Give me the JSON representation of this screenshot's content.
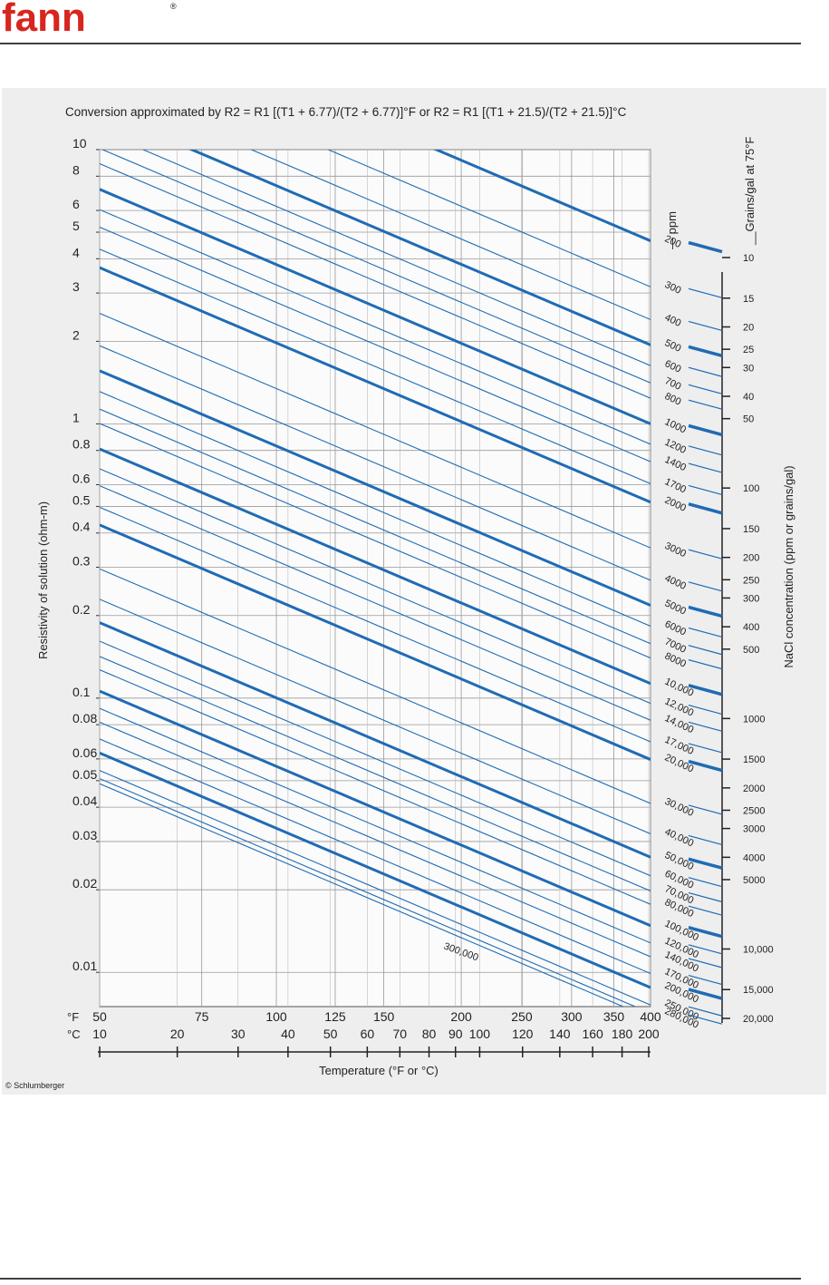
{
  "header": {
    "logo": "fann",
    "mark": "®"
  },
  "chart_data": {
    "type": "line",
    "title": "Conversion approximated by R2 = R1 [(T1 + 6.77)/(T2 + 6.77)]°F or R2 = R1 [(T1 + 21.5)/(T2 + 21.5)]°C",
    "y_label": "Resistivity of solution (ohm-m)",
    "x_label": "Temperature (°F or °C)",
    "right_label": "NaCl concentration (ppm or grains/gal)",
    "ppm_label": "— ppm",
    "grains_label": "__Grains/gal at 75°F",
    "f_unit": "°F",
    "c_unit": "°C",
    "credit": "© Schlumberger",
    "color": "#1f6bb5",
    "xscale_offset": 6.77,
    "xlim": [
      50,
      400
    ],
    "xticks": [
      50,
      75,
      100,
      125,
      150,
      200,
      250,
      300,
      350,
      400
    ],
    "c_scale_offset": 21.5,
    "c_xlim": [
      10,
      200
    ],
    "c_xticks": [
      10,
      20,
      30,
      40,
      50,
      60,
      70,
      80,
      90,
      100,
      120,
      140,
      160,
      180,
      200
    ],
    "yscale": "log",
    "ylim": [
      0.0075,
      10
    ],
    "yticks": [
      10,
      8,
      6,
      5,
      4,
      3,
      2,
      1,
      0.8,
      0.6,
      0.5,
      0.4,
      0.3,
      0.2,
      0.1,
      0.08,
      0.06,
      0.05,
      0.04,
      0.03,
      0.02,
      0.01
    ],
    "grains_ticks": [
      10,
      15,
      20,
      25,
      30,
      40,
      50,
      100,
      150,
      200,
      250,
      300,
      400,
      500,
      1000,
      1500,
      2000,
      2500,
      3000,
      4000,
      5000,
      {
        "value": 10000,
        "label": "10,000"
      },
      {
        "value": 15000,
        "label": "15,000"
      },
      {
        "value": 20000,
        "label": "20,000"
      }
    ],
    "series": [
      {
        "name": "200",
        "values": [
          4.65
        ],
        "bold": true
      },
      {
        "name": "300",
        "values": [
          3.16
        ],
        "bold": false
      },
      {
        "name": "400",
        "values": [
          2.4
        ],
        "bold": false
      },
      {
        "name": "500",
        "values": [
          1.94
        ],
        "bold": true
      },
      {
        "name": "600",
        "values": [
          1.63
        ],
        "bold": false
      },
      {
        "name": "700",
        "values": [
          1.41
        ],
        "bold": false
      },
      {
        "name": "800",
        "values": [
          1.24
        ],
        "bold": false
      },
      {
        "name": "1000",
        "values": [
          1.0
        ],
        "bold": true
      },
      {
        "name": "1200",
        "values": [
          0.843
        ],
        "bold": false
      },
      {
        "name": "1400",
        "values": [
          0.728
        ],
        "bold": false
      },
      {
        "name": "1700",
        "values": [
          0.605
        ],
        "bold": false
      },
      {
        "name": "2000",
        "values": [
          0.518
        ],
        "bold": true
      },
      {
        "name": "3000",
        "values": [
          0.353
        ],
        "bold": false
      },
      {
        "name": "4000",
        "values": [
          0.269
        ],
        "bold": false
      },
      {
        "name": "5000",
        "values": [
          0.218
        ],
        "bold": true
      },
      {
        "name": "6000",
        "values": [
          0.183
        ],
        "bold": false
      },
      {
        "name": "7000",
        "values": [
          0.158
        ],
        "bold": false
      },
      {
        "name": "8000",
        "values": [
          0.14
        ],
        "bold": false
      },
      {
        "name": "10,000",
        "values": [
          0.113
        ],
        "bold": true
      },
      {
        "name": "12,000",
        "values": [
          0.0957
        ],
        "bold": false
      },
      {
        "name": "14,000",
        "values": [
          0.083
        ],
        "bold": false
      },
      {
        "name": "17,000",
        "values": [
          0.0693
        ],
        "bold": false
      },
      {
        "name": "20,000",
        "values": [
          0.0597
        ],
        "bold": true
      },
      {
        "name": "30,000",
        "values": [
          0.0413
        ],
        "bold": false
      },
      {
        "name": "40,000",
        "values": [
          0.032
        ],
        "bold": false
      },
      {
        "name": "50,000",
        "values": [
          0.0263
        ],
        "bold": true
      },
      {
        "name": "60,000",
        "values": [
          0.0225
        ],
        "bold": false
      },
      {
        "name": "70,000",
        "values": [
          0.0198
        ],
        "bold": false
      },
      {
        "name": "80,000",
        "values": [
          0.0177
        ],
        "bold": false
      },
      {
        "name": "100,000",
        "values": [
          0.0148
        ],
        "bold": true
      },
      {
        "name": "120,000",
        "values": [
          0.0128
        ],
        "bold": false
      },
      {
        "name": "140,000",
        "values": [
          0.0114
        ],
        "bold": false
      },
      {
        "name": "170,000",
        "values": [
          0.0099
        ],
        "bold": false
      },
      {
        "name": "200,000",
        "values": [
          0.0088
        ],
        "bold": true
      },
      {
        "name": "250,000",
        "values": [
          0.0076
        ],
        "bold": false
      },
      {
        "name": "280,000",
        "values": [
          0.0071
        ],
        "bold": false
      },
      {
        "name": "300,000",
        "values": [
          0.0068
        ],
        "bold": false
      }
    ]
  }
}
